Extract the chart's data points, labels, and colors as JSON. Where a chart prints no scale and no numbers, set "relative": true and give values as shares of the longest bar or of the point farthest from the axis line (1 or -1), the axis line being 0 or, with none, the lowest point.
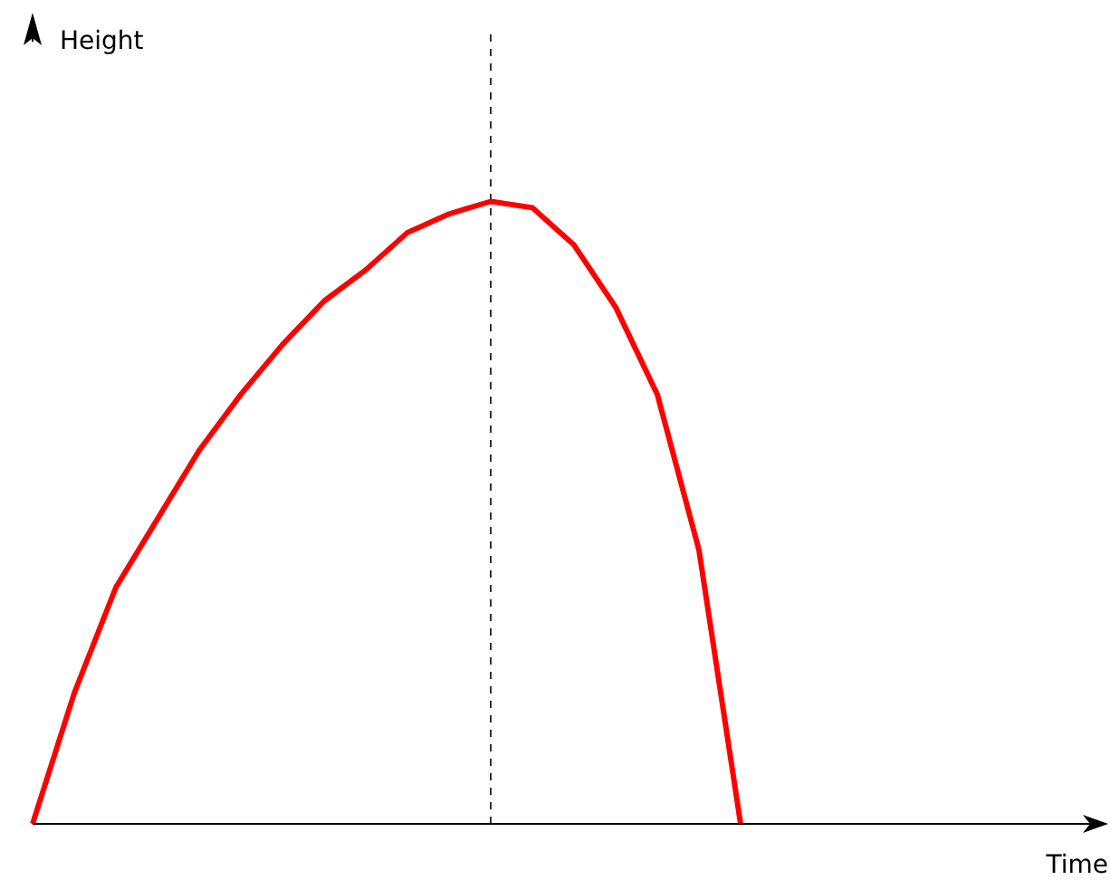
{
  "chart_data": {
    "type": "line",
    "annotations": [
      "Height",
      "Time"
    ],
    "relative": true,
    "categories": [
      null,
      null,
      null,
      null,
      null,
      null,
      null,
      null,
      null,
      null,
      null,
      null,
      null,
      null,
      null,
      null,
      null,
      null
    ],
    "series": [
      {
        "color": "#ff0000",
        "values": [
          0,
          0.21,
          0.38,
          0.49,
          0.6,
          0.69,
          0.77,
          0.84,
          0.89,
          0.95,
          0.98,
          1,
          0.99,
          0.93,
          0.83,
          0.69,
          0.44,
          0
        ]
      }
    ],
    "ref_lines": [
      {
        "axis": "x",
        "color": "#333333",
        "line_style": "dashed"
      }
    ],
    "marker": "none",
    "line_style": "solid"
  }
}
